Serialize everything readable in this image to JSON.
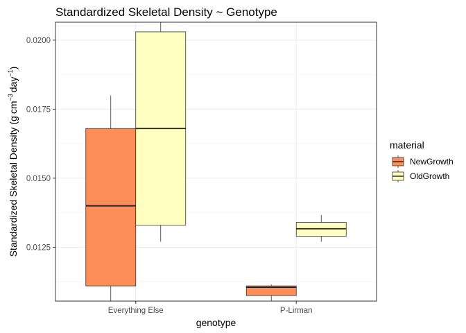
{
  "chart_data": {
    "type": "boxplot",
    "title": "Standardized Skeletal Density ~ Genotype",
    "xlabel": "genotype",
    "ylabel": {
      "prefix": "Standardized Skeletal Density (g",
      "cm": "cm",
      "cm_exp": "−3",
      "day": "day",
      "day_exp": "−1",
      "suffix": ")"
    },
    "categories": [
      "Everything Else",
      "P-Lirman"
    ],
    "ylim": [
      0.01055,
      0.02065
    ],
    "yticks": [
      0.0125,
      0.015,
      0.0175,
      0.02
    ],
    "ytick_labels": [
      "0.0125",
      "0.0150",
      "0.0175",
      "0.0200"
    ],
    "grid": true,
    "legend": {
      "title": "material",
      "position": "right"
    },
    "series": [
      {
        "name": "NewGrowth",
        "color": "#FC8D59",
        "boxes": [
          {
            "category": "Everything Else",
            "min": 0.01,
            "q1": 0.0111,
            "median": 0.014,
            "q3": 0.0168,
            "max": 0.018
          },
          {
            "category": "P-Lirman",
            "min": 0.0105,
            "q1": 0.01075,
            "median": 0.01105,
            "q3": 0.0111,
            "max": 0.01115
          }
        ]
      },
      {
        "name": "OldGrowth",
        "color": "#FFFFBF",
        "boxes": [
          {
            "category": "Everything Else",
            "min": 0.0127,
            "q1": 0.0133,
            "median": 0.0168,
            "q3": 0.0203,
            "max": 0.0211
          },
          {
            "category": "P-Lirman",
            "min": 0.0127,
            "q1": 0.0129,
            "median": 0.01317,
            "q3": 0.0134,
            "max": 0.01367
          }
        ]
      }
    ]
  }
}
